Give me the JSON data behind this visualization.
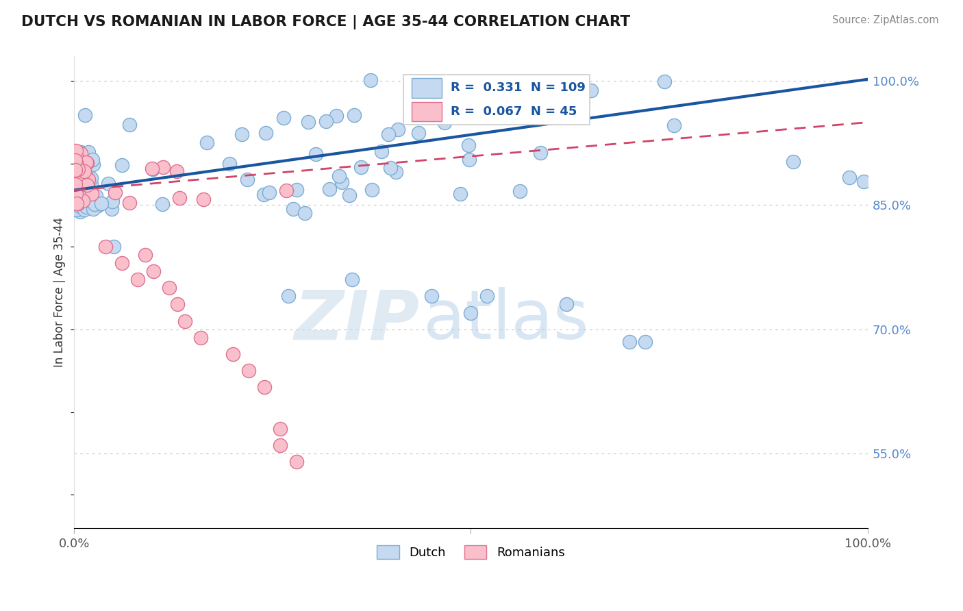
{
  "title": "DUTCH VS ROMANIAN IN LABOR FORCE | AGE 35-44 CORRELATION CHART",
  "source": "Source: ZipAtlas.com",
  "ylabel": "In Labor Force | Age 35-44",
  "xlim": [
    0.0,
    1.0
  ],
  "ylim": [
    0.46,
    1.03
  ],
  "yticks": [
    0.55,
    0.7,
    0.85,
    1.0
  ],
  "ytick_labels": [
    "55.0%",
    "70.0%",
    "85.0%",
    "100.0%"
  ],
  "dutch_R": 0.331,
  "dutch_N": 109,
  "romanian_R": 0.067,
  "romanian_N": 45,
  "dutch_fill_color": "#c5d9f0",
  "dutch_edge_color": "#7badd4",
  "dutch_line_color": "#1a55a0",
  "romanian_fill_color": "#f9c0cc",
  "romanian_edge_color": "#e07090",
  "romanian_line_color": "#d04468",
  "dutch_line_y0": 0.868,
  "dutch_line_y1": 1.002,
  "romanian_line_y0": 0.868,
  "romanian_line_y1": 0.95,
  "watermark_zip": "ZIP",
  "watermark_atlas": "atlas",
  "bg_color": "#ffffff",
  "grid_color": "#cccccc",
  "title_color": "#1a1a1a",
  "right_axis_color": "#5588cc",
  "source_color": "#888888"
}
